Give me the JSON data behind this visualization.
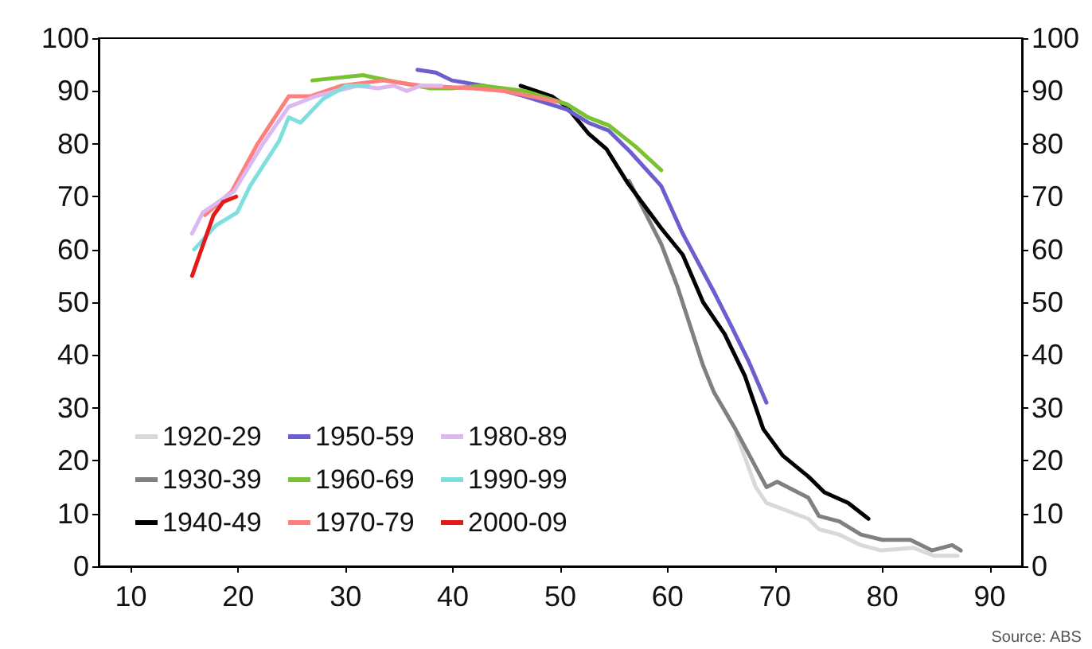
{
  "chart_data": {
    "type": "line",
    "marker": "none",
    "line_style": "solid",
    "grid": false,
    "legend": "bottom left",
    "xlim": [
      7,
      93
    ],
    "xticks": [
      10,
      20,
      30,
      40,
      50,
      60,
      70,
      80,
      90
    ],
    "ylim": [
      0,
      100
    ],
    "yticks": [
      0,
      10,
      20,
      30,
      40,
      50,
      60,
      70,
      80,
      90,
      100
    ],
    "y2lim": [
      0,
      100
    ],
    "y2ticks": [
      0,
      10,
      20,
      30,
      40,
      50,
      60,
      70,
      80,
      90,
      100
    ],
    "annotations": [
      "Source: ABS"
    ],
    "series": [
      {
        "name": "1920-29",
        "color": "#d9d9d9",
        "x": [
          66.4,
          68.2,
          69.2,
          73.1,
          74.1,
          76,
          78,
          79.9,
          82.9,
          84.8,
          87
        ],
        "values": [
          25,
          15,
          12,
          9,
          7,
          6,
          4,
          3,
          3.5,
          2,
          2
        ]
      },
      {
        "name": "1930-39",
        "color": "#808080",
        "x": [
          56.4,
          58.4,
          59.4,
          60.9,
          63.3,
          64.3,
          66.3,
          69.2,
          70.2,
          73.1,
          74.1,
          76,
          78,
          80,
          82.6,
          84.6,
          86.5,
          87.3
        ],
        "values": [
          73,
          65,
          61,
          53,
          38,
          33,
          26,
          15,
          16,
          13,
          9.5,
          8.5,
          6,
          5,
          5,
          3,
          4,
          3
        ]
      },
      {
        "name": "1940-49",
        "color": "#000000",
        "x": [
          46.3,
          49.2,
          50.6,
          52.6,
          54.3,
          56.3,
          59.4,
          61.4,
          63.3,
          65.3,
          67.2,
          68.9,
          70.7,
          73.1,
          74.6,
          76.8,
          78.7
        ],
        "values": [
          91,
          89,
          87,
          82,
          79,
          72.5,
          64,
          59,
          50,
          44,
          36,
          26,
          21,
          17,
          14,
          12,
          9
        ]
      },
      {
        "name": "1950-59",
        "color": "#6b5fcf",
        "x": [
          36.7,
          38.4,
          39.9,
          42.8,
          44.8,
          46.7,
          50.6,
          52.6,
          54.5,
          56.5,
          59.4,
          61.4,
          64.3,
          65.8,
          67.5,
          69.2
        ],
        "values": [
          94,
          93.5,
          92,
          91,
          90,
          89,
          86.5,
          84,
          82.5,
          78.5,
          72,
          63,
          52,
          46,
          39,
          31
        ]
      },
      {
        "name": "1960-69",
        "color": "#7ac231",
        "x": [
          26.9,
          31.6,
          34,
          37.9,
          39.9,
          42.8,
          46.7,
          50.6,
          52.6,
          54.5,
          57,
          59.4
        ],
        "values": [
          92,
          93,
          92,
          90.5,
          90.5,
          91,
          90,
          87.5,
          85,
          83.5,
          79.5,
          75
        ]
      },
      {
        "name": "1970-79",
        "color": "#ff7f7f",
        "x": [
          16.9,
          19.4,
          21.8,
          24.7,
          26.7,
          29.6,
          33.5,
          37,
          41.8,
          44.8,
          49.7
        ],
        "values": [
          66.5,
          71,
          80,
          89,
          89,
          91,
          92,
          91,
          90.5,
          90,
          88
        ]
      },
      {
        "name": "1980-89",
        "color": "#dcb8f0",
        "x": [
          15.7,
          16.7,
          19.6,
          22.3,
          24.7,
          27.2,
          31.1,
          33,
          34.5,
          35.7,
          37,
          38.9
        ],
        "values": [
          63,
          67,
          71,
          80,
          87,
          89,
          91,
          90.5,
          91,
          90,
          91,
          91
        ]
      },
      {
        "name": "1990-99",
        "color": "#7fdede",
        "x": [
          15.9,
          17.9,
          19.9,
          21.1,
          23.8,
          24.7,
          25.8,
          27.9,
          30.1,
          32.1
        ],
        "values": [
          60,
          64.5,
          67,
          72,
          80.5,
          85,
          84,
          88.5,
          91,
          91
        ]
      },
      {
        "name": "2000-09",
        "color": "#e31a1c",
        "x": [
          15.7,
          17.7,
          18.6,
          19.8
        ],
        "values": [
          55,
          66.5,
          69,
          70
        ]
      }
    ]
  }
}
